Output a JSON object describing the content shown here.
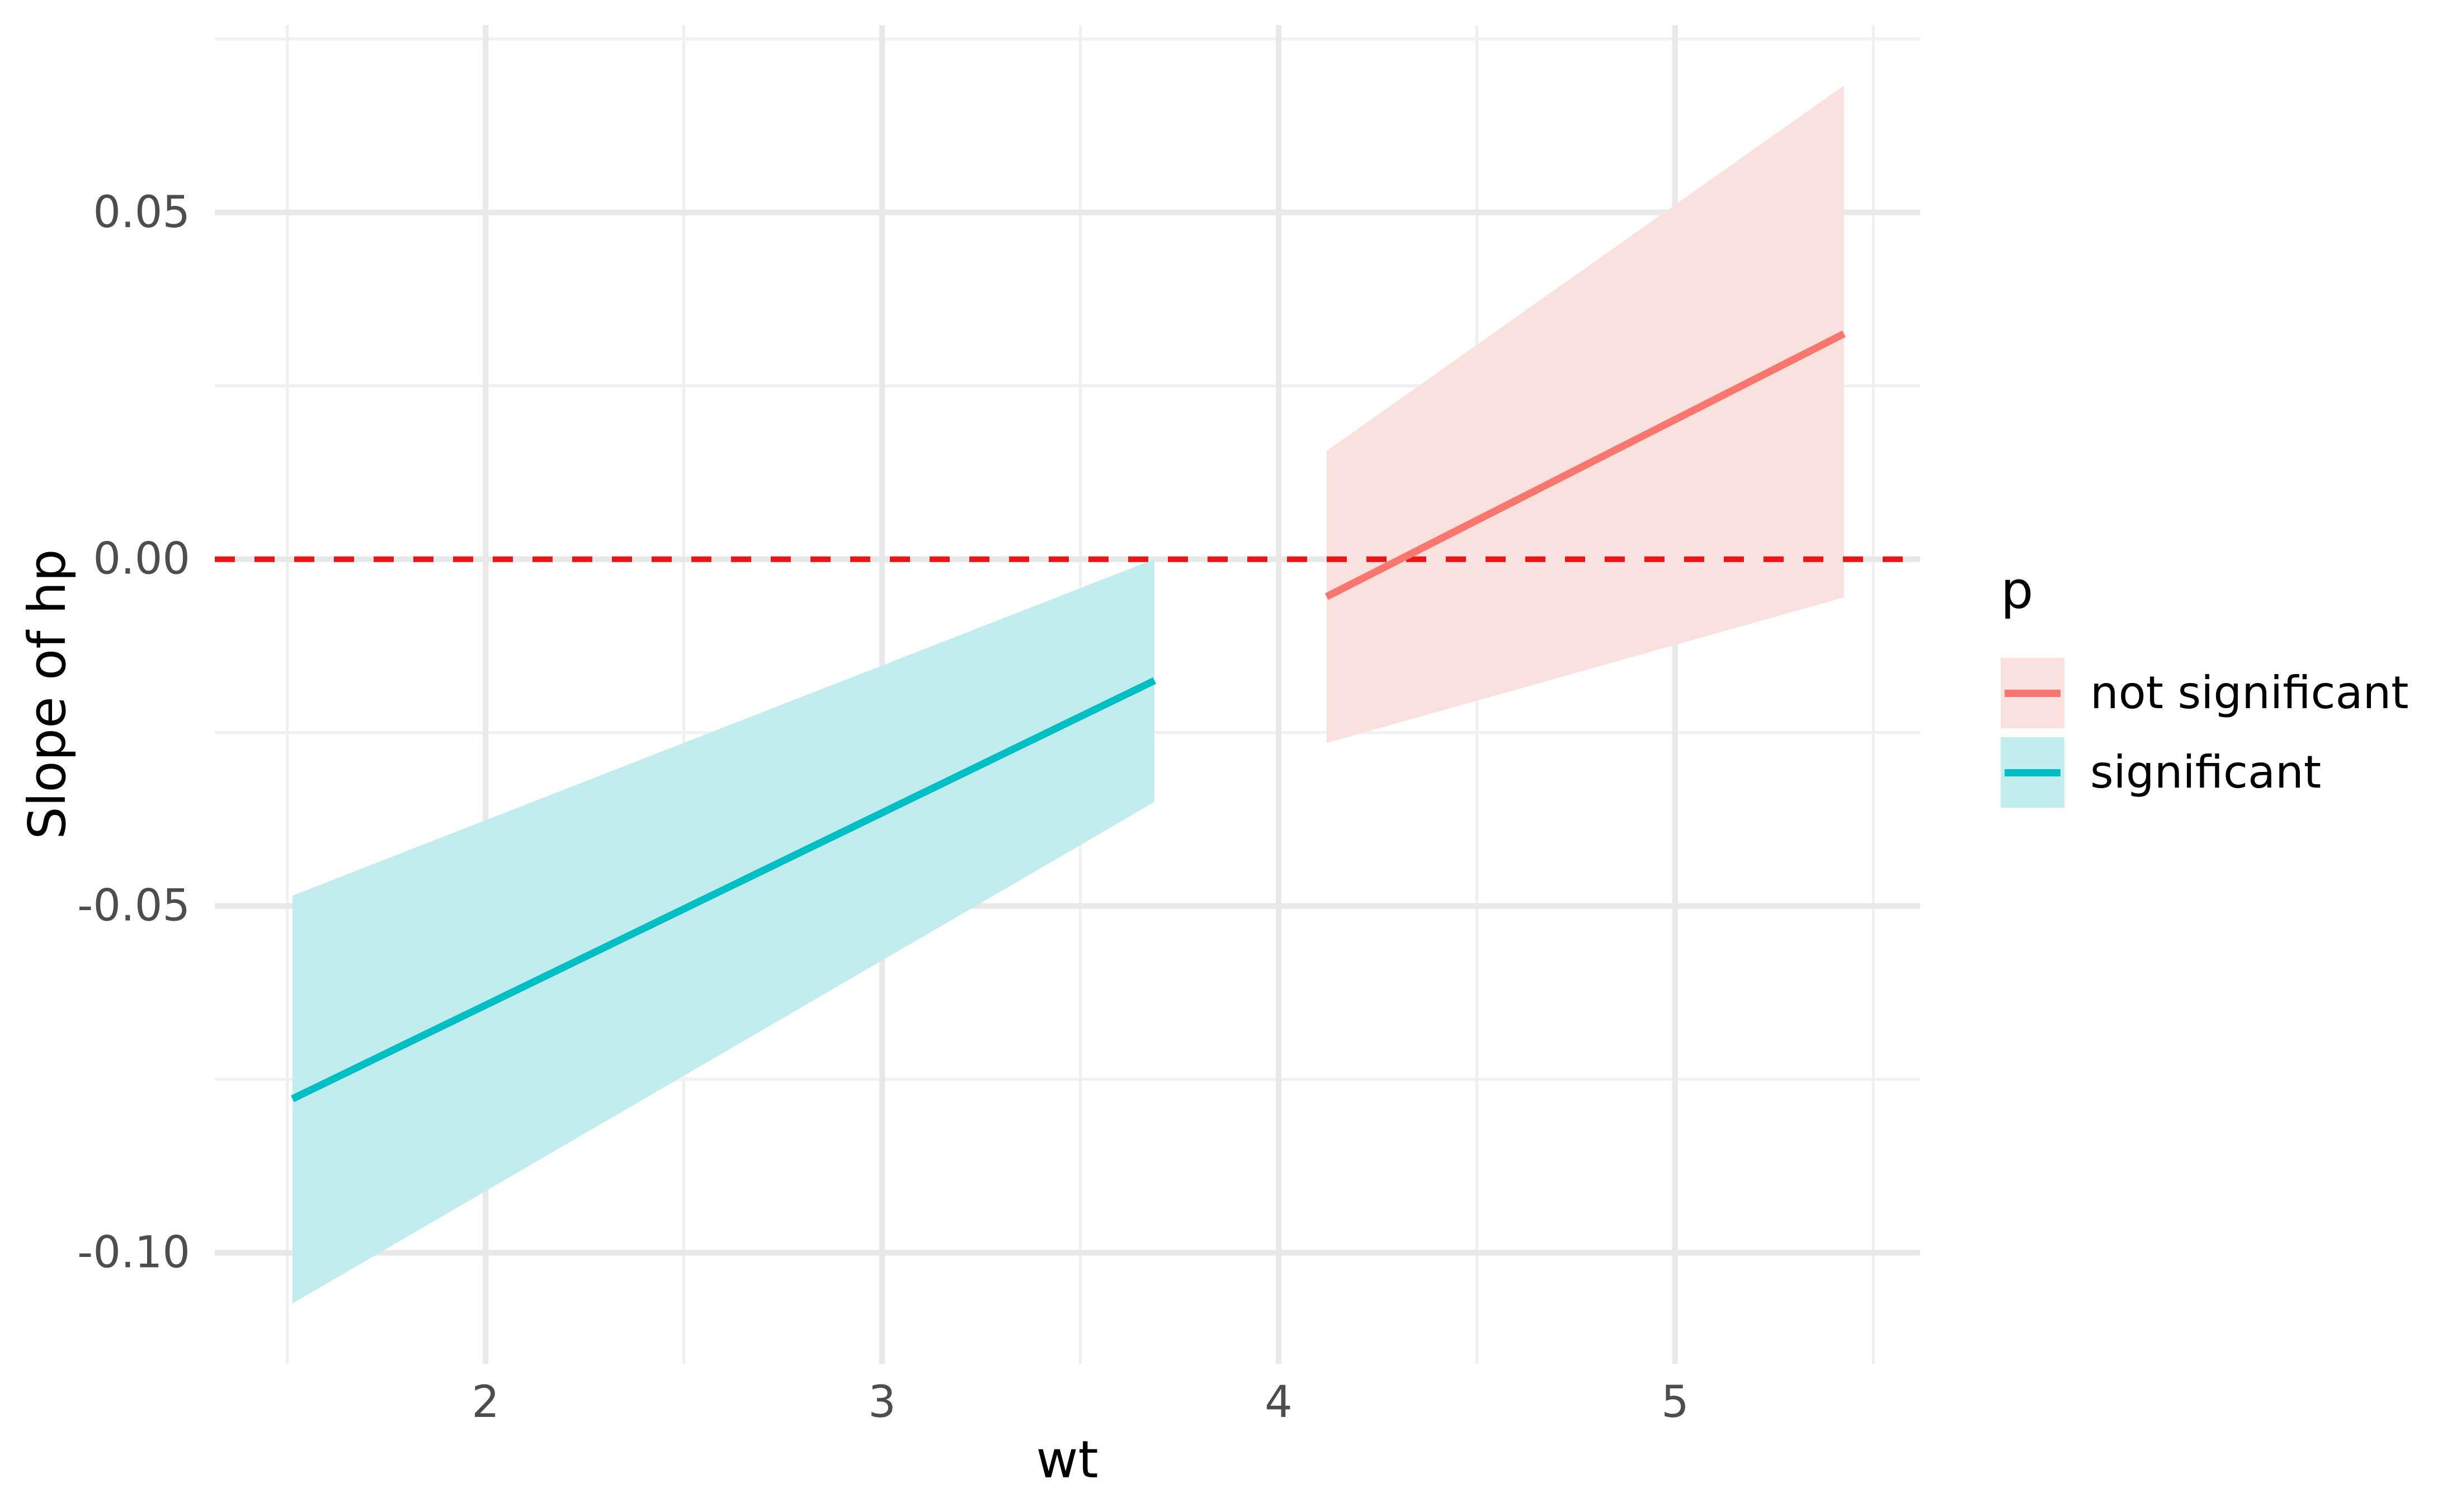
{
  "chart_data": {
    "type": "line",
    "title": "",
    "xlabel": "wt",
    "ylabel": "Slope of hp",
    "xlim": [
      1.317,
      5.618
    ],
    "ylim": [
      -0.116,
      0.077
    ],
    "grid": {
      "major_color": "#E8E8E8",
      "minor_color": "#F0F0F0",
      "visible": true
    },
    "x_major_ticks": [
      {
        "value": 2,
        "label": "2"
      },
      {
        "value": 3,
        "label": "3"
      },
      {
        "value": 4,
        "label": "4"
      },
      {
        "value": 5,
        "label": "5"
      }
    ],
    "x_minor_ticks": [
      1.5,
      2.5,
      3.5,
      4.5,
      5.5
    ],
    "y_major_ticks": [
      {
        "value": 0.05,
        "label": "0.05"
      },
      {
        "value": 0.0,
        "label": "0.00"
      },
      {
        "value": -0.05,
        "label": "-0.05"
      },
      {
        "value": -0.1,
        "label": "-0.10"
      }
    ],
    "y_minor_ticks": [
      0.075,
      0.025,
      -0.025,
      -0.075
    ],
    "zero_line": {
      "y": 0,
      "style": "dashed",
      "color": "#EC1414"
    },
    "series": [
      {
        "name": "significant",
        "line_color": "#00BFC4",
        "fill_color": "#C2EDEF",
        "x": [
          1.513,
          3.687
        ],
        "line_y": [
          -0.0778,
          -0.0175
        ],
        "ribbon_upper": [
          -0.0485,
          0.0
        ],
        "ribbon_lower": [
          -0.1073,
          -0.035
        ]
      },
      {
        "name": "not significant",
        "line_color": "#F8766D",
        "fill_color": "#FBE1DE",
        "x": [
          4.121,
          5.426
        ],
        "line_y": [
          -0.0054,
          0.0325
        ],
        "ribbon_upper": [
          0.0156,
          0.0683
        ],
        "ribbon_lower": [
          -0.0265,
          -0.0055
        ]
      }
    ],
    "legend": {
      "title": "p",
      "position": "right",
      "items": [
        {
          "label": "not significant",
          "line_color": "#F8766D",
          "fill_color": "#FBE1DE"
        },
        {
          "label": "significant",
          "line_color": "#00BFC4",
          "fill_color": "#C2EDEF"
        }
      ]
    }
  }
}
